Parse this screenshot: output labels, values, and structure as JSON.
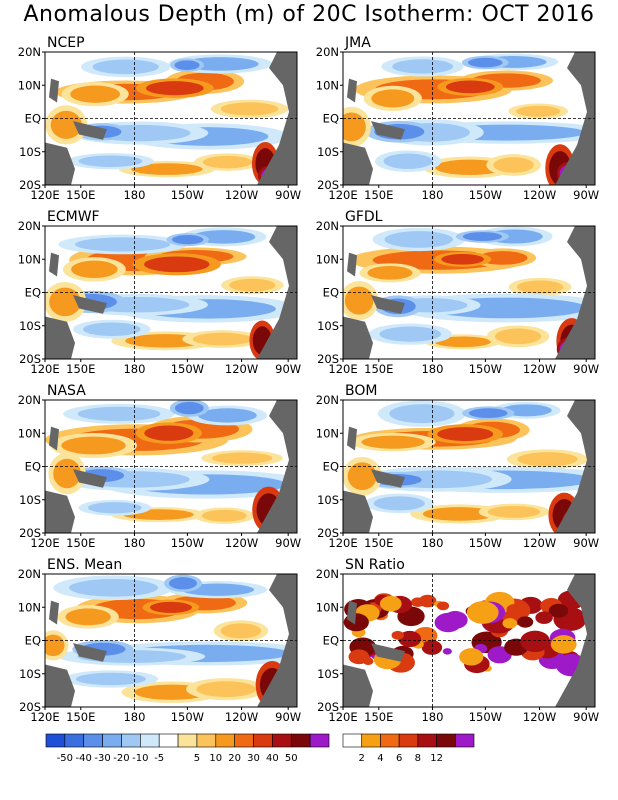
{
  "title": "Anomalous Depth (m) of 20C Isotherm: OCT 2016",
  "chart_data": {
    "type": "heatmap",
    "x_ticks": [
      "120E",
      "150E",
      "180",
      "150W",
      "120W",
      "90W"
    ],
    "y_ticks": [
      "20N",
      "10N",
      "EQ",
      "10S",
      "20S"
    ],
    "panels": [
      {
        "key": "ncep",
        "title": "NCEP"
      },
      {
        "key": "jma",
        "title": "JMA"
      },
      {
        "key": "ecmwf",
        "title": "ECMWF"
      },
      {
        "key": "gfdl",
        "title": "GFDL"
      },
      {
        "key": "nasa",
        "title": "NASA"
      },
      {
        "key": "bom",
        "title": "BOM"
      },
      {
        "key": "ens",
        "title": "ENS. Mean"
      },
      {
        "key": "sn",
        "title": "SN Ratio"
      }
    ],
    "anomaly_colorbar": {
      "colors": [
        "#1f4fd6",
        "#3a6fe0",
        "#5b8fea",
        "#7aadef",
        "#9fc8f4",
        "#cfe9fb",
        "#ffffff",
        "#fbe39a",
        "#fbc35a",
        "#f59a1e",
        "#ef6a12",
        "#d93a10",
        "#a80f12",
        "#7a0808",
        "#9e19c8"
      ],
      "labels": [
        "-50",
        "-40",
        "-30",
        "-20",
        "-10",
        "-5",
        "5",
        "10",
        "20",
        "30",
        "40",
        "50"
      ]
    },
    "sn_colorbar": {
      "colors": [
        "#ffffff",
        "#f5a015",
        "#ef6a12",
        "#d93a10",
        "#a80f12",
        "#7a0808",
        "#9e19c8"
      ],
      "labels": [
        "2",
        "4",
        "6",
        "8",
        "12"
      ]
    }
  }
}
